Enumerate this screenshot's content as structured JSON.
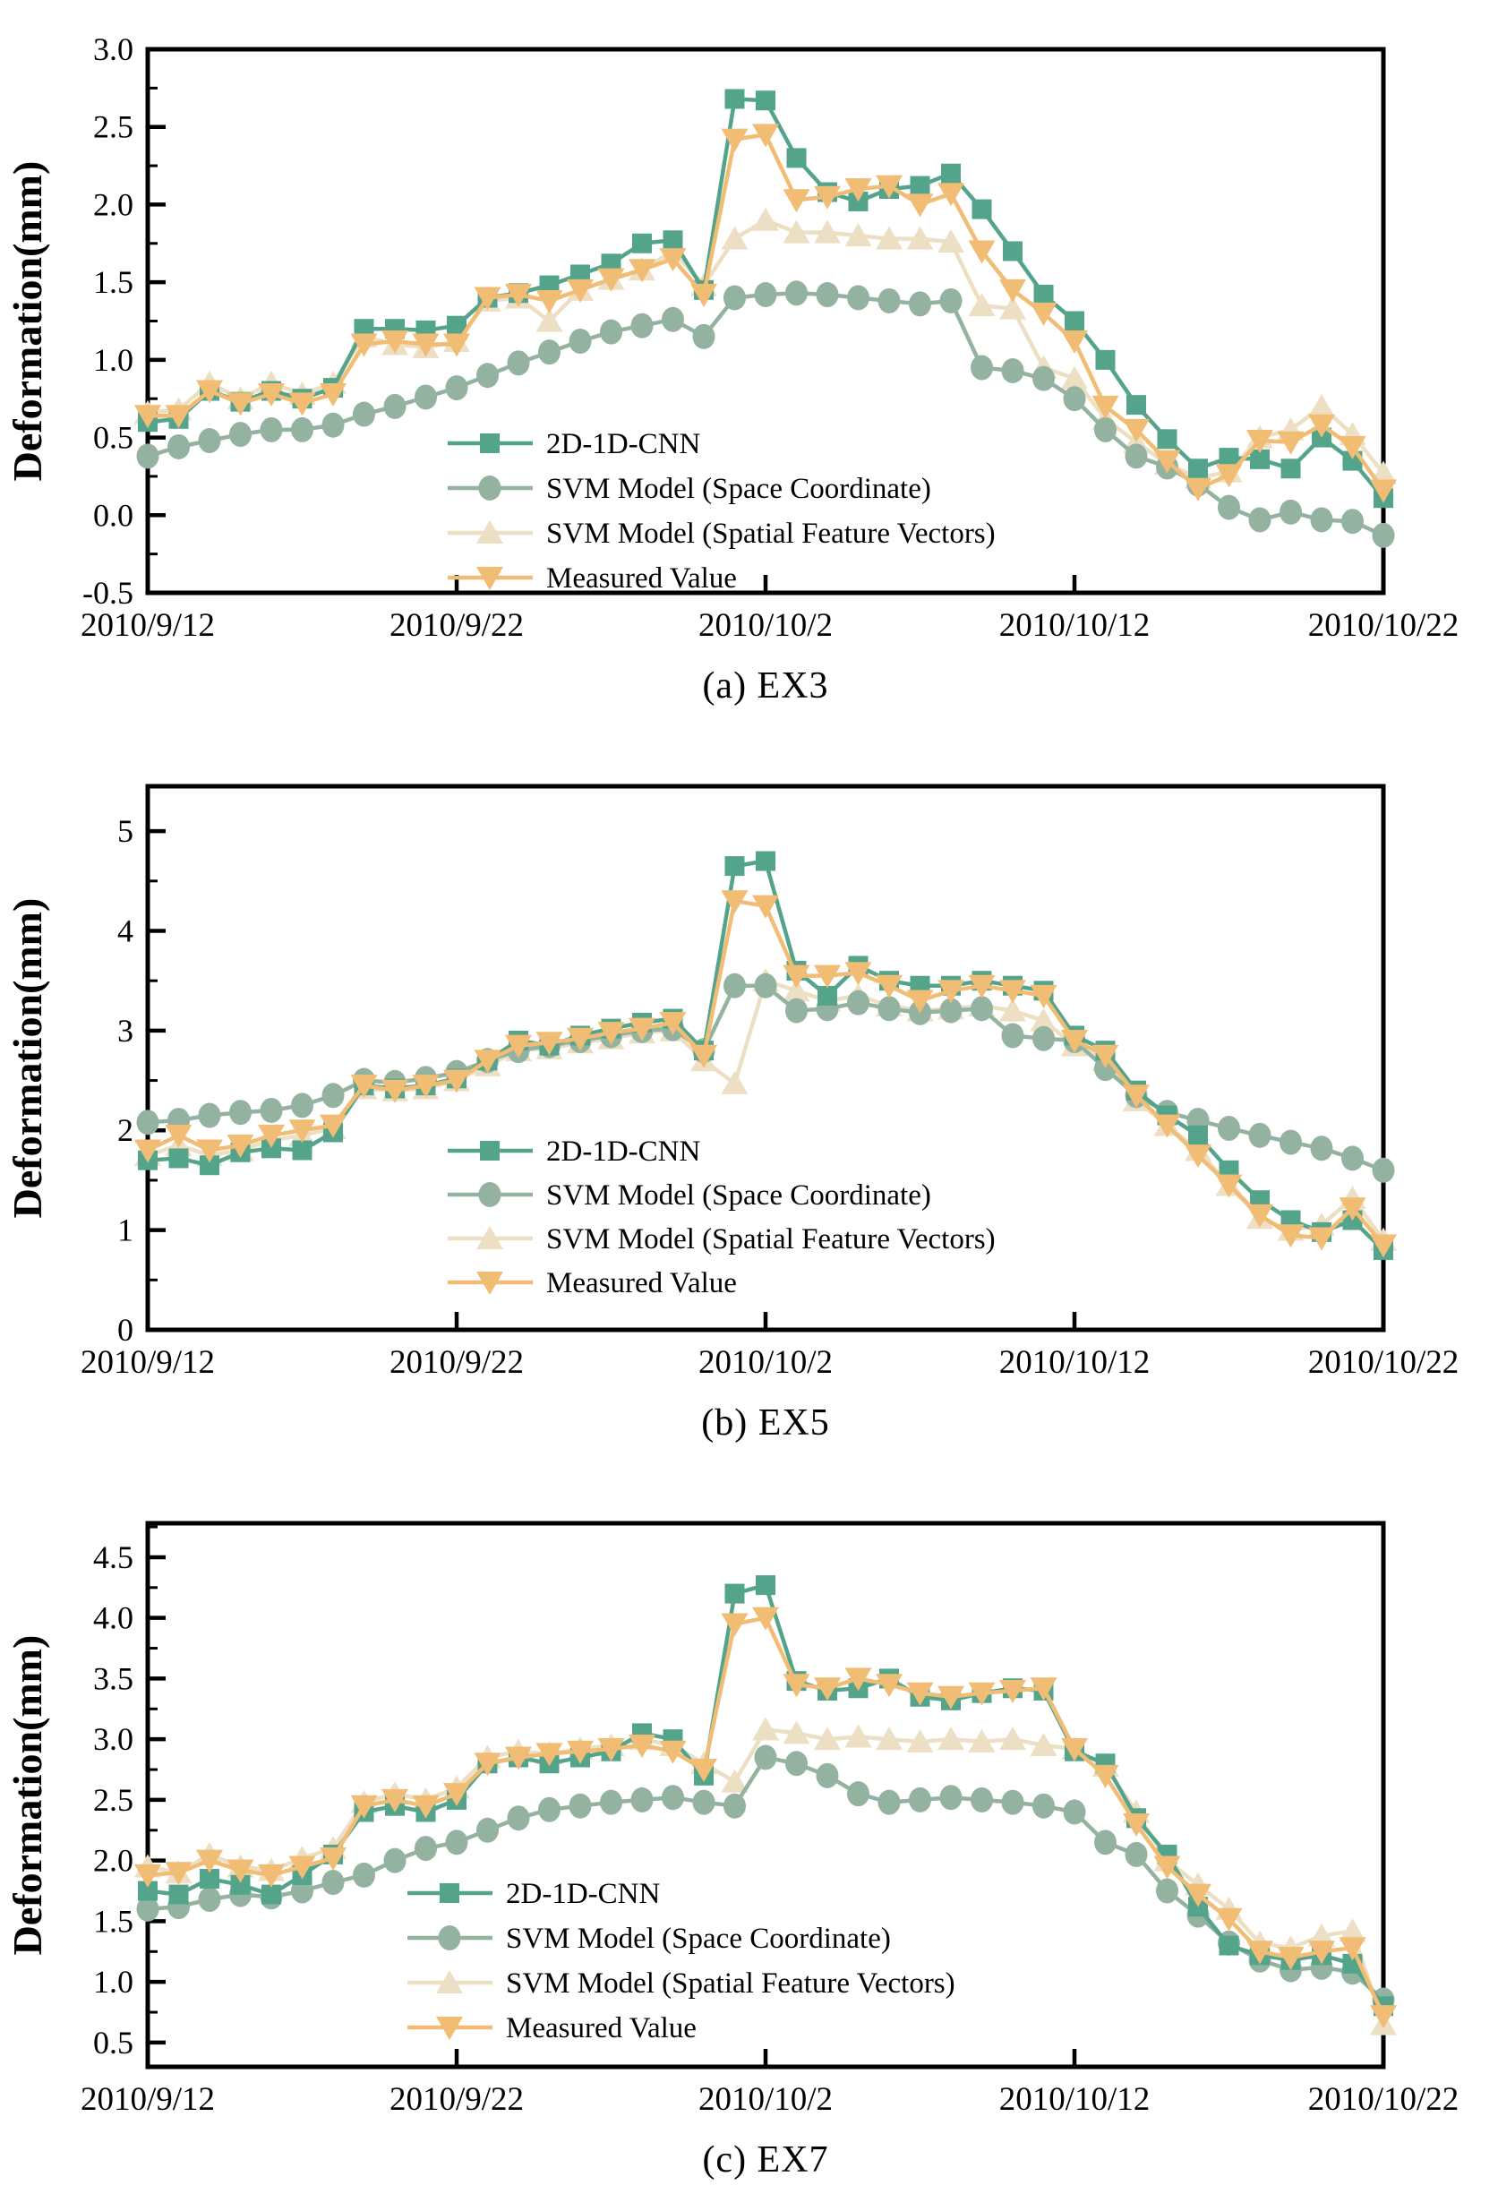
{
  "page": {
    "background": "#ffffff",
    "text_color": "#000000"
  },
  "chart_data": [
    {
      "id": "a",
      "type": "line",
      "caption": "(a) EX3",
      "ylabel": "Deformation(mm)",
      "x_tick_labels": [
        "2010/9/12",
        "2010/9/22",
        "2010/10/2",
        "2010/10/12",
        "2010/10/22"
      ],
      "x_tick_days": [
        0,
        10,
        20,
        30,
        40
      ],
      "x_range": [
        0,
        40
      ],
      "ylim": [
        -0.5,
        3.0
      ],
      "y_ticks": [
        {
          "v": 3.0,
          "label": "3.0"
        },
        {
          "v": 2.5,
          "label": "2.5"
        },
        {
          "v": 2.0,
          "label": "2.0"
        },
        {
          "v": 1.5,
          "label": "1.5"
        },
        {
          "v": 1.0,
          "label": "1.0"
        },
        {
          "v": 0.5,
          "label": "0.5"
        },
        {
          "v": 0.0,
          "label": "0.0"
        },
        {
          "v": -0.5,
          "label": "-0.5"
        }
      ],
      "y_minor_step": 0.25,
      "grid": false,
      "legend_position": "inside-lower-left",
      "series": [
        {
          "name": "2D-1D-CNN",
          "marker": "square",
          "color": "#54A48C",
          "values": [
            0.6,
            0.62,
            0.8,
            0.73,
            0.8,
            0.75,
            0.82,
            1.2,
            1.2,
            1.19,
            1.22,
            1.4,
            1.43,
            1.48,
            1.55,
            1.62,
            1.75,
            1.77,
            1.45,
            2.68,
            2.67,
            2.3,
            2.08,
            2.02,
            2.1,
            2.12,
            2.2,
            1.97,
            1.7,
            1.42,
            1.25,
            1.0,
            0.71,
            0.49,
            0.3,
            0.37,
            0.36,
            0.3,
            0.5,
            0.35,
            0.11
          ]
        },
        {
          "name": "SVM Model (Space Coordinate)",
          "marker": "circle",
          "color": "#93B2A0",
          "values": [
            0.38,
            0.44,
            0.48,
            0.52,
            0.55,
            0.55,
            0.58,
            0.65,
            0.7,
            0.76,
            0.82,
            0.9,
            0.98,
            1.05,
            1.12,
            1.18,
            1.22,
            1.26,
            1.15,
            1.4,
            1.42,
            1.43,
            1.42,
            1.4,
            1.38,
            1.36,
            1.38,
            0.95,
            0.93,
            0.88,
            0.75,
            0.55,
            0.38,
            0.31,
            0.2,
            0.05,
            -0.03,
            0.02,
            -0.03,
            -0.04,
            -0.13
          ]
        },
        {
          "name": "SVM Model (Spatial Feature Vectors)",
          "marker": "triangle-up",
          "color": "#EDDFC3",
          "values": [
            0.66,
            0.68,
            0.85,
            0.75,
            0.85,
            0.78,
            0.85,
            1.15,
            1.1,
            1.08,
            1.12,
            1.38,
            1.4,
            1.25,
            1.45,
            1.52,
            1.58,
            1.7,
            1.48,
            1.78,
            1.9,
            1.82,
            1.82,
            1.8,
            1.78,
            1.78,
            1.76,
            1.35,
            1.33,
            0.95,
            0.88,
            0.62,
            0.47,
            0.33,
            0.24,
            0.28,
            0.5,
            0.55,
            0.7,
            0.52,
            0.27
          ]
        },
        {
          "name": "Measured Value",
          "marker": "triangle-down",
          "color": "#F1BC74",
          "values": [
            0.64,
            0.64,
            0.8,
            0.72,
            0.78,
            0.72,
            0.78,
            1.1,
            1.12,
            1.1,
            1.1,
            1.4,
            1.42,
            1.38,
            1.45,
            1.52,
            1.58,
            1.65,
            1.42,
            2.42,
            2.45,
            2.03,
            2.05,
            2.1,
            2.12,
            2.0,
            2.07,
            1.7,
            1.45,
            1.3,
            1.12,
            0.7,
            0.55,
            0.35,
            0.17,
            0.26,
            0.48,
            0.47,
            0.58,
            0.44,
            0.16
          ]
        }
      ]
    },
    {
      "id": "b",
      "type": "line",
      "caption": "(b) EX5",
      "ylabel": "Deformation(mm)",
      "x_tick_labels": [
        "2010/9/12",
        "2010/9/22",
        "2010/10/2",
        "2010/10/12",
        "2010/10/22"
      ],
      "x_tick_days": [
        0,
        10,
        20,
        30,
        40
      ],
      "x_range": [
        0,
        40
      ],
      "ylim": [
        0,
        5.45
      ],
      "y_ticks": [
        {
          "v": 5,
          "label": "5"
        },
        {
          "v": 4,
          "label": "4"
        },
        {
          "v": 3,
          "label": "3"
        },
        {
          "v": 2,
          "label": "2"
        },
        {
          "v": 1,
          "label": "1"
        },
        {
          "v": 0,
          "label": "0"
        }
      ],
      "y_minor_step": 0.5,
      "grid": false,
      "legend_position": "inside-lower-left",
      "series": [
        {
          "name": "2D-1D-CNN",
          "marker": "square",
          "color": "#54A48C",
          "values": [
            1.7,
            1.72,
            1.65,
            1.78,
            1.82,
            1.8,
            1.98,
            2.45,
            2.42,
            2.45,
            2.52,
            2.7,
            2.9,
            2.85,
            2.95,
            3.02,
            3.08,
            3.12,
            2.8,
            4.65,
            4.7,
            3.6,
            3.35,
            3.65,
            3.5,
            3.45,
            3.45,
            3.5,
            3.45,
            3.4,
            2.95,
            2.8,
            2.4,
            2.15,
            1.95,
            1.6,
            1.3,
            1.1,
            0.98,
            1.1,
            0.8
          ]
        },
        {
          "name": "SVM Model (Space Coordinate)",
          "marker": "circle",
          "color": "#93B2A0",
          "values": [
            2.08,
            2.1,
            2.15,
            2.18,
            2.2,
            2.25,
            2.35,
            2.5,
            2.48,
            2.52,
            2.58,
            2.7,
            2.8,
            2.85,
            2.9,
            2.95,
            3.0,
            3.02,
            2.8,
            3.45,
            3.45,
            3.2,
            3.22,
            3.28,
            3.22,
            3.18,
            3.2,
            3.22,
            2.95,
            2.92,
            2.9,
            2.62,
            2.35,
            2.18,
            2.1,
            2.02,
            1.95,
            1.88,
            1.82,
            1.72,
            1.6
          ]
        },
        {
          "name": "SVM Model (Spatial Feature Vectors)",
          "marker": "triangle-up",
          "color": "#EDDFC3",
          "values": [
            1.75,
            1.85,
            1.75,
            1.8,
            1.9,
            1.95,
            2.02,
            2.42,
            2.4,
            2.42,
            2.5,
            2.65,
            2.8,
            2.82,
            2.88,
            2.92,
            2.98,
            3.0,
            2.7,
            2.47,
            3.5,
            3.4,
            3.3,
            3.35,
            3.25,
            3.2,
            3.22,
            3.25,
            3.2,
            3.1,
            2.85,
            2.7,
            2.3,
            2.05,
            1.8,
            1.45,
            1.12,
            1.0,
            1.05,
            1.32,
            0.9
          ]
        },
        {
          "name": "Measured Value",
          "marker": "triangle-down",
          "color": "#F1BC74",
          "values": [
            1.8,
            1.95,
            1.8,
            1.85,
            1.95,
            2.0,
            2.05,
            2.45,
            2.4,
            2.45,
            2.5,
            2.7,
            2.85,
            2.88,
            2.92,
            2.98,
            3.02,
            3.08,
            2.75,
            4.3,
            4.25,
            3.55,
            3.55,
            3.58,
            3.45,
            3.3,
            3.4,
            3.45,
            3.4,
            3.35,
            2.9,
            2.75,
            2.35,
            2.05,
            1.75,
            1.45,
            1.15,
            0.95,
            0.92,
            1.22,
            0.85
          ]
        }
      ]
    },
    {
      "id": "c",
      "type": "line",
      "caption": "(c) EX7",
      "ylabel": "Deformation(mm)",
      "x_tick_labels": [
        "2010/9/12",
        "2010/9/22",
        "2010/10/2",
        "2010/10/12",
        "2010/10/22"
      ],
      "x_tick_days": [
        0,
        10,
        20,
        30,
        40
      ],
      "x_range": [
        0,
        40
      ],
      "ylim": [
        0.3,
        4.78
      ],
      "y_ticks": [
        {
          "v": 4.5,
          "label": "4.5"
        },
        {
          "v": 4.0,
          "label": "4.0"
        },
        {
          "v": 3.5,
          "label": "3.5"
        },
        {
          "v": 3.0,
          "label": "3.0"
        },
        {
          "v": 2.5,
          "label": "2.5"
        },
        {
          "v": 2.0,
          "label": "2.0"
        },
        {
          "v": 1.5,
          "label": "1.5"
        },
        {
          "v": 1.0,
          "label": "1.0"
        },
        {
          "v": 0.5,
          "label": "0.5"
        }
      ],
      "y_minor_step": 0.25,
      "grid": false,
      "legend_position": "inside-lower-left",
      "series": [
        {
          "name": "2D-1D-CNN",
          "marker": "square",
          "color": "#54A48C",
          "values": [
            1.75,
            1.72,
            1.85,
            1.8,
            1.72,
            1.88,
            2.05,
            2.4,
            2.45,
            2.4,
            2.5,
            2.8,
            2.85,
            2.8,
            2.85,
            2.9,
            3.05,
            3.0,
            2.7,
            4.2,
            4.27,
            3.48,
            3.4,
            3.42,
            3.5,
            3.35,
            3.32,
            3.38,
            3.42,
            3.4,
            2.9,
            2.8,
            2.35,
            2.05,
            1.62,
            1.3,
            1.22,
            1.18,
            1.22,
            1.15,
            0.8
          ]
        },
        {
          "name": "SVM Model (Space Coordinate)",
          "marker": "circle",
          "color": "#93B2A0",
          "values": [
            1.6,
            1.62,
            1.68,
            1.72,
            1.7,
            1.75,
            1.82,
            1.88,
            2.0,
            2.1,
            2.15,
            2.25,
            2.35,
            2.42,
            2.45,
            2.48,
            2.5,
            2.52,
            2.48,
            2.45,
            2.85,
            2.8,
            2.7,
            2.55,
            2.48,
            2.5,
            2.52,
            2.5,
            2.48,
            2.45,
            2.4,
            2.15,
            2.05,
            1.75,
            1.55,
            1.32,
            1.18,
            1.1,
            1.12,
            1.08,
            0.85
          ]
        },
        {
          "name": "SVM Model (Spatial Feature Vectors)",
          "marker": "triangle-up",
          "color": "#EDDFC3",
          "values": [
            1.95,
            1.9,
            2.05,
            1.95,
            1.92,
            2.02,
            2.1,
            2.48,
            2.55,
            2.5,
            2.6,
            2.85,
            2.9,
            2.88,
            2.92,
            2.95,
            3.0,
            2.95,
            2.8,
            2.65,
            3.08,
            3.05,
            3.0,
            3.02,
            3.0,
            2.98,
            3.0,
            2.98,
            3.0,
            2.95,
            2.92,
            2.78,
            2.4,
            2.0,
            1.8,
            1.6,
            1.32,
            1.28,
            1.38,
            1.42,
            0.65
          ]
        },
        {
          "name": "Measured Value",
          "marker": "triangle-down",
          "color": "#F1BC74",
          "values": [
            1.88,
            1.9,
            2.0,
            1.92,
            1.88,
            1.95,
            2.02,
            2.45,
            2.5,
            2.45,
            2.55,
            2.8,
            2.85,
            2.88,
            2.9,
            2.92,
            2.95,
            2.9,
            2.75,
            3.95,
            4.0,
            3.45,
            3.42,
            3.5,
            3.45,
            3.38,
            3.35,
            3.38,
            3.4,
            3.42,
            2.92,
            2.7,
            2.3,
            1.95,
            1.72,
            1.52,
            1.25,
            1.2,
            1.25,
            1.28,
            0.72
          ]
        }
      ]
    }
  ]
}
